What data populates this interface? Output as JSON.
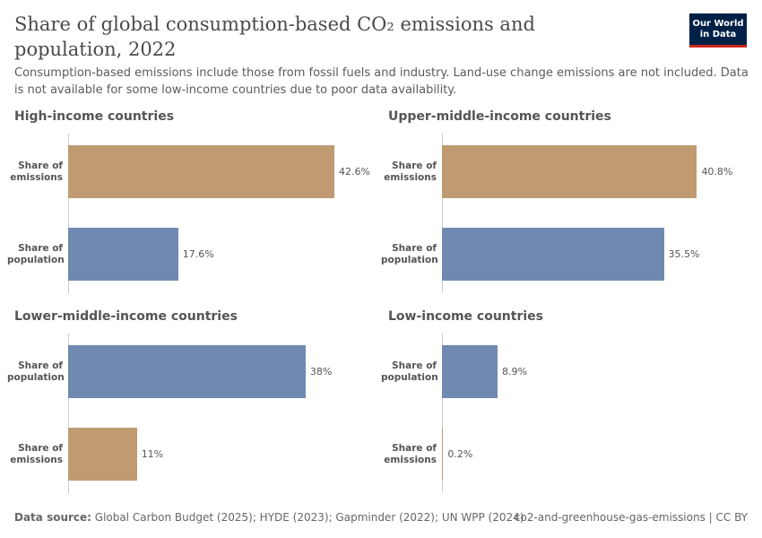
{
  "header": {
    "title": "Share of global consumption-based CO₂ emissions and population, 2022",
    "subtitle": "Consumption-based emissions include those from fossil fuels and industry. Land-use change emissions are not included. Data is not available for some low-income countries due to poor data availability.",
    "logo": "Our World in Data"
  },
  "chart_data": [
    {
      "type": "bar",
      "orientation": "horizontal",
      "title": "High-income countries",
      "categories": [
        "Share of emissions",
        "Share of population"
      ],
      "values": [
        42.6,
        17.6
      ],
      "value_labels": [
        "42.6%",
        "17.6%"
      ],
      "colors": [
        "#c09a71",
        "#6f89b1"
      ]
    },
    {
      "type": "bar",
      "orientation": "horizontal",
      "title": "Upper-middle-income countries",
      "categories": [
        "Share of emissions",
        "Share of population"
      ],
      "values": [
        40.8,
        35.5
      ],
      "value_labels": [
        "40.8%",
        "35.5%"
      ],
      "colors": [
        "#c09a71",
        "#6f89b1"
      ]
    },
    {
      "type": "bar",
      "orientation": "horizontal",
      "title": "Lower-middle-income countries",
      "categories": [
        "Share of population",
        "Share of emissions"
      ],
      "values": [
        38,
        11
      ],
      "value_labels": [
        "38%",
        "11%"
      ],
      "colors": [
        "#6f89b1",
        "#c09a71"
      ]
    },
    {
      "type": "bar",
      "orientation": "horizontal",
      "title": "Low-income countries",
      "categories": [
        "Share of population",
        "Share of emissions"
      ],
      "values": [
        8.9,
        0.2
      ],
      "value_labels": [
        "8.9%",
        "0.2%"
      ],
      "colors": [
        "#6f89b1",
        "#c09a71"
      ]
    }
  ],
  "footer": {
    "source_label": "Data source:",
    "source": "Global Carbon Budget (2025); HYDE (2023); Gapminder (2022); UN WPP (2024)",
    "url": "co2-and-greenhouse-gas-emissions | CC BY"
  }
}
